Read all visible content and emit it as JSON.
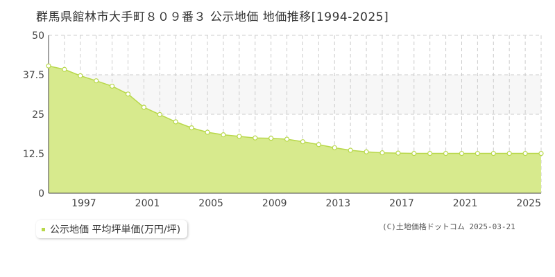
{
  "title": "群馬県館林市大手町８０９番３ 公示地価 地価推移[1994-2025]",
  "legend": {
    "label": "公示地価 平均坪単価(万円/坪)"
  },
  "credit": "(C)土地価格ドットコム 2025-03-21",
  "colors": {
    "fill": "#d7ea8d",
    "line": "#b8d84a",
    "marker_fill": "#ffffff",
    "band": "#f7f7f7",
    "grid": "#cccccc"
  },
  "chart_data": {
    "type": "area",
    "title": "",
    "xlabel": "",
    "ylabel": "",
    "xlim": [
      1994,
      2025
    ],
    "ylim": [
      0,
      50
    ],
    "yticks": [
      0,
      12.5,
      25,
      37.5,
      50
    ],
    "ytick_labels": [
      "0",
      "12.5",
      "25",
      "37.5",
      "50"
    ],
    "xticks": [
      1997,
      2001,
      2005,
      2009,
      2013,
      2017,
      2021,
      2025
    ],
    "grid": true,
    "legend_position": "bottom-left",
    "series": [
      {
        "name": "公示地価 平均坪単価(万円/坪)",
        "x": [
          1994,
          1995,
          1996,
          1997,
          1998,
          1999,
          2000,
          2001,
          2002,
          2003,
          2004,
          2005,
          2006,
          2007,
          2008,
          2009,
          2010,
          2011,
          2012,
          2013,
          2014,
          2015,
          2016,
          2017,
          2018,
          2019,
          2020,
          2021,
          2022,
          2023,
          2024,
          2025
        ],
        "values": [
          40.3,
          39.2,
          37.2,
          35.6,
          33.9,
          31.4,
          27.2,
          24.9,
          22.6,
          20.7,
          19.3,
          18.5,
          18.0,
          17.5,
          17.4,
          17.1,
          16.3,
          15.4,
          14.4,
          13.6,
          13.1,
          12.8,
          12.7,
          12.6,
          12.6,
          12.6,
          12.6,
          12.6,
          12.6,
          12.6,
          12.6,
          12.6
        ]
      }
    ]
  }
}
